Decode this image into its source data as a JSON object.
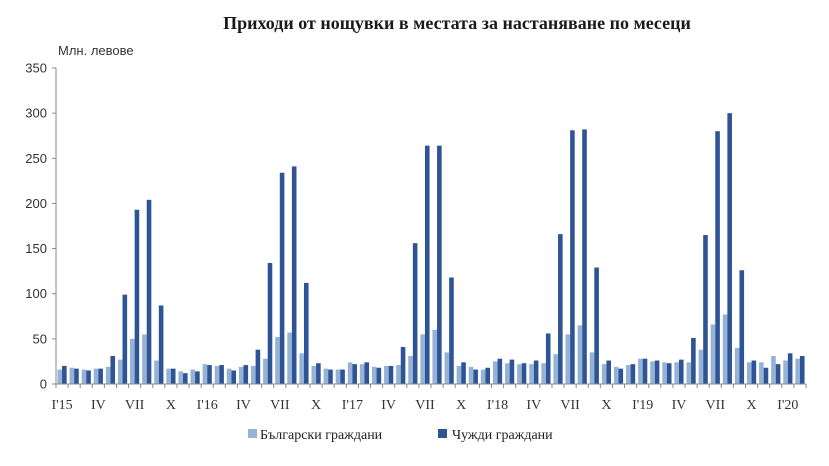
{
  "chart_data": {
    "type": "bar",
    "title": "Приходи от нощувки в местата за настаняване по месеци",
    "ylabel": "Млн. левове",
    "xlabel": "",
    "ylim": [
      0,
      350
    ],
    "yticks": [
      0,
      50,
      100,
      150,
      200,
      250,
      300,
      350
    ],
    "grid": false,
    "legend_position": "bottom",
    "x_tick_labels": [
      {
        "index": 0,
        "label": "I'15"
      },
      {
        "index": 3,
        "label": "IV"
      },
      {
        "index": 6,
        "label": "VII"
      },
      {
        "index": 9,
        "label": "X"
      },
      {
        "index": 12,
        "label": "I'16"
      },
      {
        "index": 15,
        "label": "IV"
      },
      {
        "index": 18,
        "label": "VII"
      },
      {
        "index": 21,
        "label": "X"
      },
      {
        "index": 24,
        "label": "I'17"
      },
      {
        "index": 27,
        "label": "IV"
      },
      {
        "index": 30,
        "label": "VII"
      },
      {
        "index": 33,
        "label": "X"
      },
      {
        "index": 36,
        "label": "I'18"
      },
      {
        "index": 39,
        "label": "IV"
      },
      {
        "index": 42,
        "label": "VII"
      },
      {
        "index": 45,
        "label": "X"
      },
      {
        "index": 48,
        "label": "I'19"
      },
      {
        "index": 51,
        "label": "IV"
      },
      {
        "index": 54,
        "label": "VII"
      },
      {
        "index": 57,
        "label": "X"
      },
      {
        "index": 60,
        "label": "I'20"
      }
    ],
    "series": [
      {
        "name": "Български граждани",
        "color": "#95b3d7",
        "values": [
          16,
          18,
          16,
          17,
          19,
          27,
          50,
          55,
          26,
          17,
          14,
          16,
          22,
          20,
          17,
          19,
          20,
          28,
          52,
          57,
          34,
          20,
          17,
          16,
          24,
          22,
          19,
          20,
          21,
          31,
          55,
          60,
          35,
          20,
          19,
          16,
          25,
          23,
          22,
          22,
          23,
          33,
          55,
          65,
          35,
          22,
          19,
          21,
          28,
          25,
          24,
          24,
          24,
          38,
          66,
          77,
          40,
          24,
          24,
          31,
          26,
          28
        ]
      },
      {
        "name": "Чужди граждани",
        "color": "#2f5496",
        "values": [
          20,
          17,
          15,
          17,
          31,
          99,
          193,
          204,
          87,
          17,
          12,
          14,
          21,
          21,
          15,
          21,
          38,
          134,
          234,
          241,
          112,
          23,
          16,
          16,
          22,
          24,
          18,
          20,
          41,
          156,
          264,
          264,
          118,
          24,
          16,
          18,
          28,
          27,
          23,
          26,
          56,
          166,
          281,
          282,
          129,
          26,
          17,
          22,
          28,
          26,
          23,
          27,
          51,
          165,
          280,
          300,
          126,
          26,
          18,
          22,
          34,
          31
        ]
      }
    ]
  }
}
